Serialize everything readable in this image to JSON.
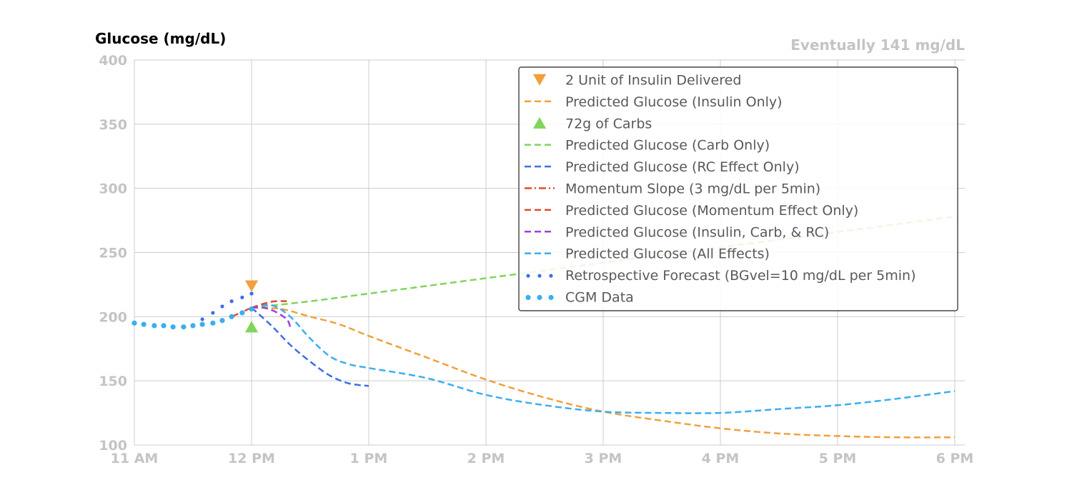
{
  "chart_data": {
    "type": "line",
    "ylabel": "Glucose (mg/dL)",
    "annotation": "Eventually 141 mg/dL",
    "ylim": [
      100,
      400
    ],
    "yticks": [
      100,
      150,
      200,
      250,
      300,
      350,
      400
    ],
    "ytick_labels": [
      "100",
      "150",
      "200",
      "250",
      "300",
      "350",
      "400"
    ],
    "xlim": [
      11,
      18
    ],
    "xticks": [
      11,
      12,
      13,
      14,
      15,
      16,
      17,
      18
    ],
    "xtick_labels": [
      "11 AM",
      "12 PM",
      "1 PM",
      "2 PM",
      "3 PM",
      "4 PM",
      "5 PM",
      "6 PM"
    ],
    "grid": true,
    "legend_position": "top-right",
    "series": [
      {
        "key": "insulin_marker",
        "name": "2 Unit of Insulin Delivered",
        "style": "marker-down",
        "color": "#f0a03c",
        "points": [
          [
            12.0,
            224
          ]
        ]
      },
      {
        "key": "insulin_only",
        "name": "Predicted Glucose (Insulin Only)",
        "style": "dashed",
        "color": "#f0a03c",
        "points": [
          [
            12.0,
            207
          ],
          [
            12.25,
            206
          ],
          [
            12.5,
            200
          ],
          [
            12.75,
            194
          ],
          [
            13.0,
            185
          ],
          [
            13.5,
            168
          ],
          [
            14.0,
            151
          ],
          [
            14.5,
            137
          ],
          [
            15.0,
            126
          ],
          [
            15.5,
            119
          ],
          [
            16.0,
            113
          ],
          [
            16.5,
            109
          ],
          [
            17.0,
            107
          ],
          [
            17.5,
            106
          ],
          [
            18.0,
            106
          ]
        ]
      },
      {
        "key": "carb_marker",
        "name": "72g of Carbs",
        "style": "marker-up",
        "color": "#7fd65a",
        "points": [
          [
            12.0,
            192
          ]
        ]
      },
      {
        "key": "carb_only",
        "name": "Predicted Glucose (Carb Only)",
        "style": "dashed",
        "color": "#7fd65a",
        "points": [
          [
            12.0,
            207
          ],
          [
            12.5,
            212
          ],
          [
            13.0,
            218
          ],
          [
            13.5,
            224
          ],
          [
            14.0,
            230
          ],
          [
            14.5,
            236
          ],
          [
            15.0,
            242
          ],
          [
            15.5,
            248
          ],
          [
            16.0,
            254
          ],
          [
            16.5,
            260
          ],
          [
            17.0,
            266
          ],
          [
            17.5,
            272
          ],
          [
            18.0,
            278
          ]
        ]
      },
      {
        "key": "rc_only",
        "name": "Predicted Glucose (RC Effect Only)",
        "style": "dashed",
        "color": "#3b6fe8",
        "points": [
          [
            12.0,
            207
          ],
          [
            12.17,
            193
          ],
          [
            12.33,
            178
          ],
          [
            12.5,
            165
          ],
          [
            12.67,
            154
          ],
          [
            12.83,
            148
          ],
          [
            13.0,
            146
          ]
        ]
      },
      {
        "key": "momentum_slope",
        "name": "Momentum Slope (3 mg/dL per 5min)",
        "style": "dashdot",
        "color": "#e04b30",
        "points": [
          [
            11.83,
            200
          ],
          [
            12.0,
            207
          ]
        ]
      },
      {
        "key": "momentum_only",
        "name": "Predicted Glucose (Momentum Effect Only)",
        "style": "dashed",
        "color": "#e04b30",
        "points": [
          [
            12.0,
            207
          ],
          [
            12.1,
            210
          ],
          [
            12.2,
            212
          ],
          [
            12.3,
            212
          ]
        ]
      },
      {
        "key": "insulin_carb_rc",
        "name": "Predicted Glucose (Insulin, Carb, & RC)",
        "style": "dashed",
        "color": "#a03ee0",
        "points": [
          [
            12.0,
            207
          ],
          [
            12.1,
            207
          ],
          [
            12.2,
            204
          ],
          [
            12.3,
            198
          ],
          [
            12.33,
            192
          ]
        ]
      },
      {
        "key": "all_effects",
        "name": "Predicted Glucose (All Effects)",
        "style": "dashed",
        "color": "#3aaef0",
        "points": [
          [
            12.0,
            207
          ],
          [
            12.17,
            209
          ],
          [
            12.33,
            200
          ],
          [
            12.5,
            183
          ],
          [
            12.67,
            169
          ],
          [
            12.83,
            163
          ],
          [
            13.0,
            160
          ],
          [
            13.5,
            152
          ],
          [
            14.0,
            139
          ],
          [
            14.5,
            131
          ],
          [
            15.0,
            126
          ],
          [
            15.5,
            125
          ],
          [
            16.0,
            125
          ],
          [
            16.5,
            128
          ],
          [
            17.0,
            131
          ],
          [
            17.5,
            136
          ],
          [
            18.0,
            142
          ]
        ]
      },
      {
        "key": "retrospective",
        "name": "Retrospective Forecast (BGvel=10 mg/dL per 5min)",
        "style": "dotted-small",
        "color": "#3b6fe8",
        "points": [
          [
            11.58,
            198
          ],
          [
            11.67,
            203
          ],
          [
            11.75,
            208
          ],
          [
            11.83,
            212
          ],
          [
            11.92,
            215
          ],
          [
            12.0,
            218
          ]
        ]
      },
      {
        "key": "cgm",
        "name": "CGM Data",
        "style": "dotted-large",
        "color": "#3aaef0",
        "points": [
          [
            11.0,
            195
          ],
          [
            11.08,
            194
          ],
          [
            11.17,
            193
          ],
          [
            11.25,
            193
          ],
          [
            11.33,
            192
          ],
          [
            11.42,
            192
          ],
          [
            11.5,
            193
          ],
          [
            11.58,
            194
          ],
          [
            11.67,
            195
          ],
          [
            11.75,
            197
          ],
          [
            11.83,
            200
          ],
          [
            11.92,
            203
          ],
          [
            12.0,
            206
          ]
        ]
      }
    ]
  }
}
